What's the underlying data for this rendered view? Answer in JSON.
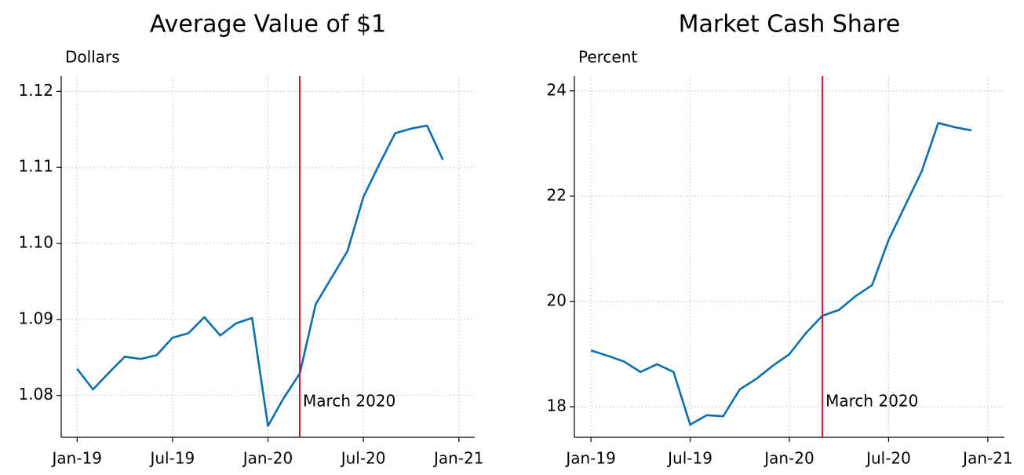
{
  "chart_data": [
    {
      "type": "line",
      "title": "Average Value of $1",
      "ylabel": "Dollars",
      "x": [
        "2019-01",
        "2019-02",
        "2019-03",
        "2019-04",
        "2019-05",
        "2019-06",
        "2019-07",
        "2019-08",
        "2019-09",
        "2019-10",
        "2019-11",
        "2019-12",
        "2020-01",
        "2020-02",
        "2020-03",
        "2020-04",
        "2020-05",
        "2020-06",
        "2020-07",
        "2020-08",
        "2020-09",
        "2020-10",
        "2020-11",
        "2020-12"
      ],
      "series": [
        {
          "color": "#0a6fae",
          "values": [
            1.0835,
            1.0808,
            1.083,
            1.0851,
            1.0848,
            1.0853,
            1.0876,
            1.0882,
            1.0903,
            1.0879,
            1.0895,
            1.0902,
            1.076,
            1.0797,
            1.0829,
            1.092,
            1.0955,
            1.099,
            1.1061,
            1.1104,
            1.1145,
            1.1151,
            1.1155,
            1.111
          ]
        }
      ],
      "xlim": [
        "2018-12",
        "2021-02"
      ],
      "xticks": [
        {
          "value": "2019-01",
          "label": "Jan-19"
        },
        {
          "value": "2019-07",
          "label": "Jul-19"
        },
        {
          "value": "2020-01",
          "label": "Jan-20"
        },
        {
          "value": "2020-07",
          "label": "Jul-20"
        },
        {
          "value": "2021-01",
          "label": "Jan-21"
        }
      ],
      "ylim": [
        1.0745,
        1.122
      ],
      "yticks": [
        1.08,
        1.09,
        {
          "value": 1.1,
          "label": "1.10"
        },
        1.11,
        1.12
      ],
      "grid": true,
      "annotation": {
        "x": "2020-03",
        "label": "March 2020",
        "color": "#c8102e"
      }
    },
    {
      "type": "line",
      "title": "Market Cash Share",
      "ylabel": "Percent",
      "x": [
        "2019-01",
        "2019-02",
        "2019-03",
        "2019-04",
        "2019-05",
        "2019-06",
        "2019-07",
        "2019-08",
        "2019-09",
        "2019-10",
        "2019-11",
        "2019-12",
        "2020-01",
        "2020-02",
        "2020-03",
        "2020-04",
        "2020-05",
        "2020-06",
        "2020-07",
        "2020-08",
        "2020-09",
        "2020-10",
        "2020-11",
        "2020-12"
      ],
      "series": [
        {
          "color": "#0a6fae",
          "values": [
            19.07,
            18.97,
            18.86,
            18.66,
            18.81,
            18.66,
            17.66,
            17.84,
            17.82,
            18.33,
            18.53,
            18.78,
            19.0,
            19.4,
            19.73,
            19.84,
            20.1,
            20.31,
            21.17,
            21.82,
            22.47,
            23.39,
            23.31,
            23.25
          ]
        }
      ],
      "xlim": [
        "2018-12",
        "2021-02"
      ],
      "xticks": [
        {
          "value": "2019-01",
          "label": "Jan-19"
        },
        {
          "value": "2019-07",
          "label": "Jul-19"
        },
        {
          "value": "2020-01",
          "label": "Jan-20"
        },
        {
          "value": "2020-07",
          "label": "Jul-20"
        },
        {
          "value": "2021-01",
          "label": "Jan-21"
        }
      ],
      "ylim": [
        17.42,
        24.28
      ],
      "yticks": [
        18,
        20,
        22,
        24
      ],
      "grid": true,
      "annotation": {
        "x": "2020-03",
        "label": "March 2020",
        "color": "#c8102e"
      }
    }
  ]
}
